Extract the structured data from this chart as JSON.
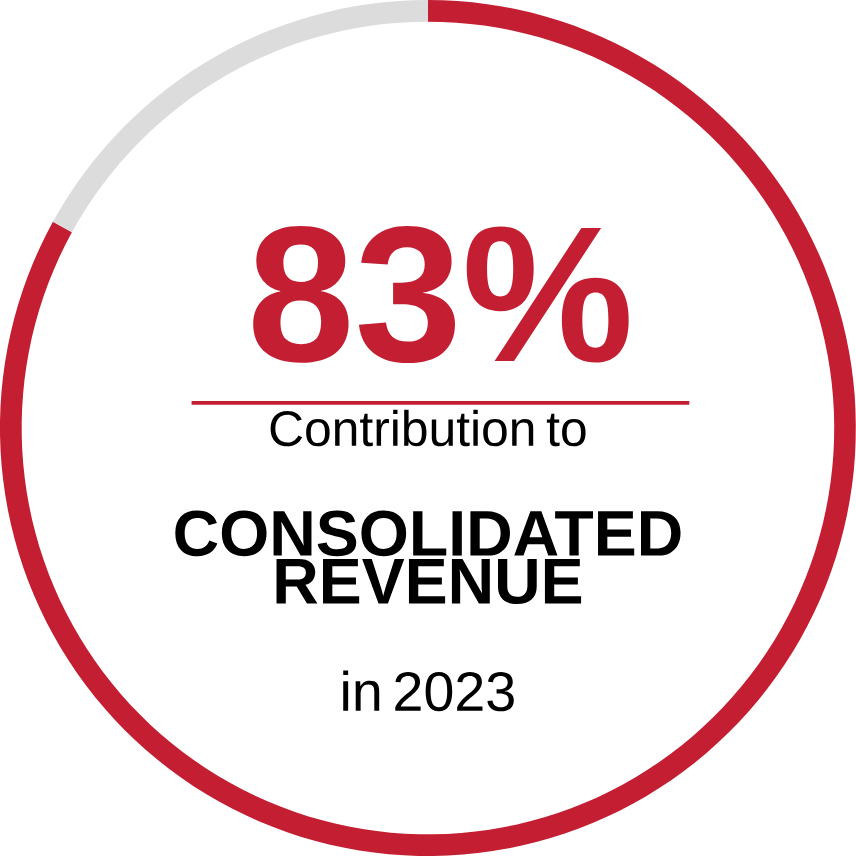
{
  "chart_data": {
    "type": "donut",
    "categories": [
      null,
      null
    ],
    "values": [
      83,
      17
    ],
    "colors": [
      "#c41e32",
      "#dcdcdc"
    ],
    "value_labels": [
      "83%",
      null
    ],
    "annotations": [
      "Contribution to",
      "CONSOLIDATED REVENUE",
      "in 2023"
    ]
  }
}
